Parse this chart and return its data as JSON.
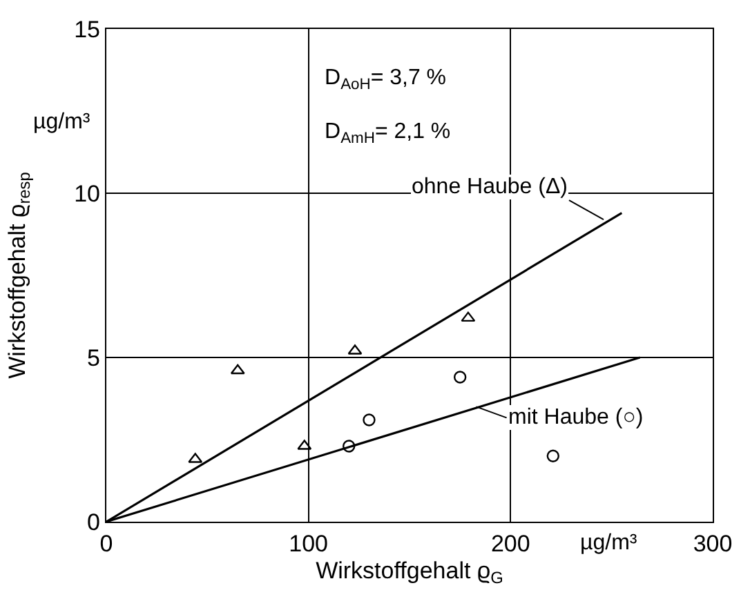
{
  "chart_data": {
    "type": "scatter",
    "xlabel": "Wirkstoffgehalt ϱ$_{G}$",
    "ylabel": "Wirkstoffgehalt ϱ$_{resp}$",
    "xlim": [
      0,
      300
    ],
    "xticks": [
      0,
      100,
      200,
      300
    ],
    "ylim": [
      0,
      15
    ],
    "yticks": [
      0,
      5,
      10,
      15
    ],
    "grid": true,
    "series": [
      {
        "marker": "triangle",
        "color": "#000000",
        "x": [
          44,
          65,
          98,
          123,
          179
        ],
        "values": [
          1.9,
          4.6,
          2.3,
          5.2,
          6.2
        ]
      },
      {
        "marker": "circle",
        "color": "#000000",
        "x": [
          120,
          130,
          175,
          221
        ],
        "values": [
          2.3,
          3.1,
          4.4,
          2.0
        ]
      },
      {
        "type": "line",
        "marker": "none",
        "color": "#000000",
        "x": [
          0,
          255
        ],
        "values": [
          0,
          9.4
        ]
      },
      {
        "type": "line",
        "marker": "none",
        "color": "#000000",
        "x": [
          0,
          264
        ],
        "values": [
          0,
          5.0
        ]
      }
    ],
    "annotations": [
      {
        "text": "ohne Haube (Δ)",
        "x": 246,
        "y": 9.2
      },
      {
        "text": "mit Haube (○)",
        "x": 183,
        "y": 3.5
      },
      "D$_{AoH}$= 3,7 %",
      "D$_{AmH}$= 2,1 %",
      "µg/m³",
      "µg/m³"
    ]
  }
}
